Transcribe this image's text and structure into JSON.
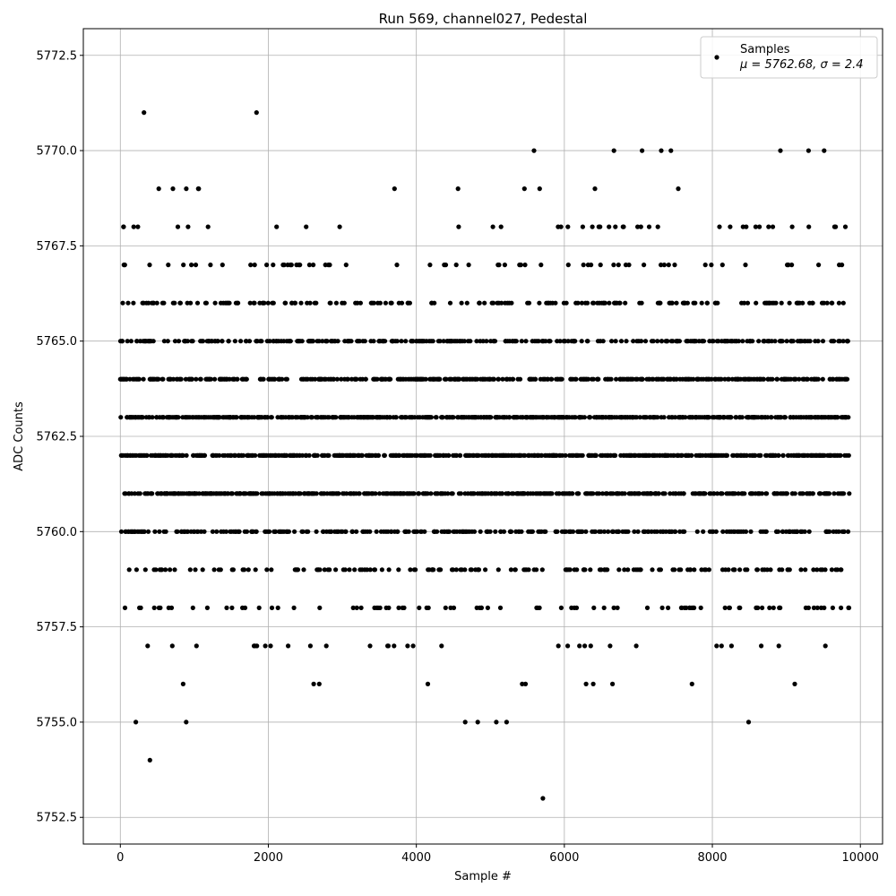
{
  "chart_data": {
    "type": "scatter",
    "title": "Run 569, channel027, Pedestal",
    "xlabel": "Sample #",
    "ylabel": "ADC Counts",
    "xlim": [
      -500,
      10300
    ],
    "ylim": [
      5751.8,
      5773.2
    ],
    "xticks": [
      0,
      2000,
      4000,
      6000,
      8000,
      10000
    ],
    "yticks": [
      5752.5,
      5755.0,
      5757.5,
      5760.0,
      5762.5,
      5765.0,
      5767.5,
      5770.0,
      5772.5
    ],
    "grid": true,
    "legend": {
      "placement": "top-right",
      "label": "Samples",
      "stats": "μ = 5762.68, σ = 2.4"
    },
    "marker_color": "#000000",
    "n_samples": 9850,
    "level_profile": {
      "5753": 0.0001,
      "5754": 0.0001,
      "5755": 0.0008,
      "5756": 0.0025,
      "5757": 0.0085,
      "5758": 0.022,
      "5759": 0.05,
      "5760": 0.092,
      "5761": 0.14,
      "5762": 0.172,
      "5763": 0.172,
      "5764": 0.14,
      "5765": 0.092,
      "5766": 0.05,
      "5767": 0.022,
      "5768": 0.0085,
      "5769": 0.0035,
      "5770": 0.0012,
      "5771": 0.0002
    },
    "outliers": [
      {
        "x": 320,
        "y": 5771
      },
      {
        "x": 1840,
        "y": 5771
      },
      {
        "x": 400,
        "y": 5754
      },
      {
        "x": 5710,
        "y": 5753
      },
      {
        "x": 210,
        "y": 5755
      },
      {
        "x": 890,
        "y": 5755
      },
      {
        "x": 4660,
        "y": 5755
      },
      {
        "x": 4830,
        "y": 5755
      },
      {
        "x": 5080,
        "y": 5755
      },
      {
        "x": 5220,
        "y": 5755
      },
      {
        "x": 8490,
        "y": 5755
      },
      {
        "x": 5590,
        "y": 5770
      },
      {
        "x": 6670,
        "y": 5770
      },
      {
        "x": 7050,
        "y": 5770
      },
      {
        "x": 7310,
        "y": 5770
      },
      {
        "x": 7440,
        "y": 5770
      },
      {
        "x": 8920,
        "y": 5770
      },
      {
        "x": 9300,
        "y": 5770
      },
      {
        "x": 9510,
        "y": 5770
      }
    ]
  }
}
